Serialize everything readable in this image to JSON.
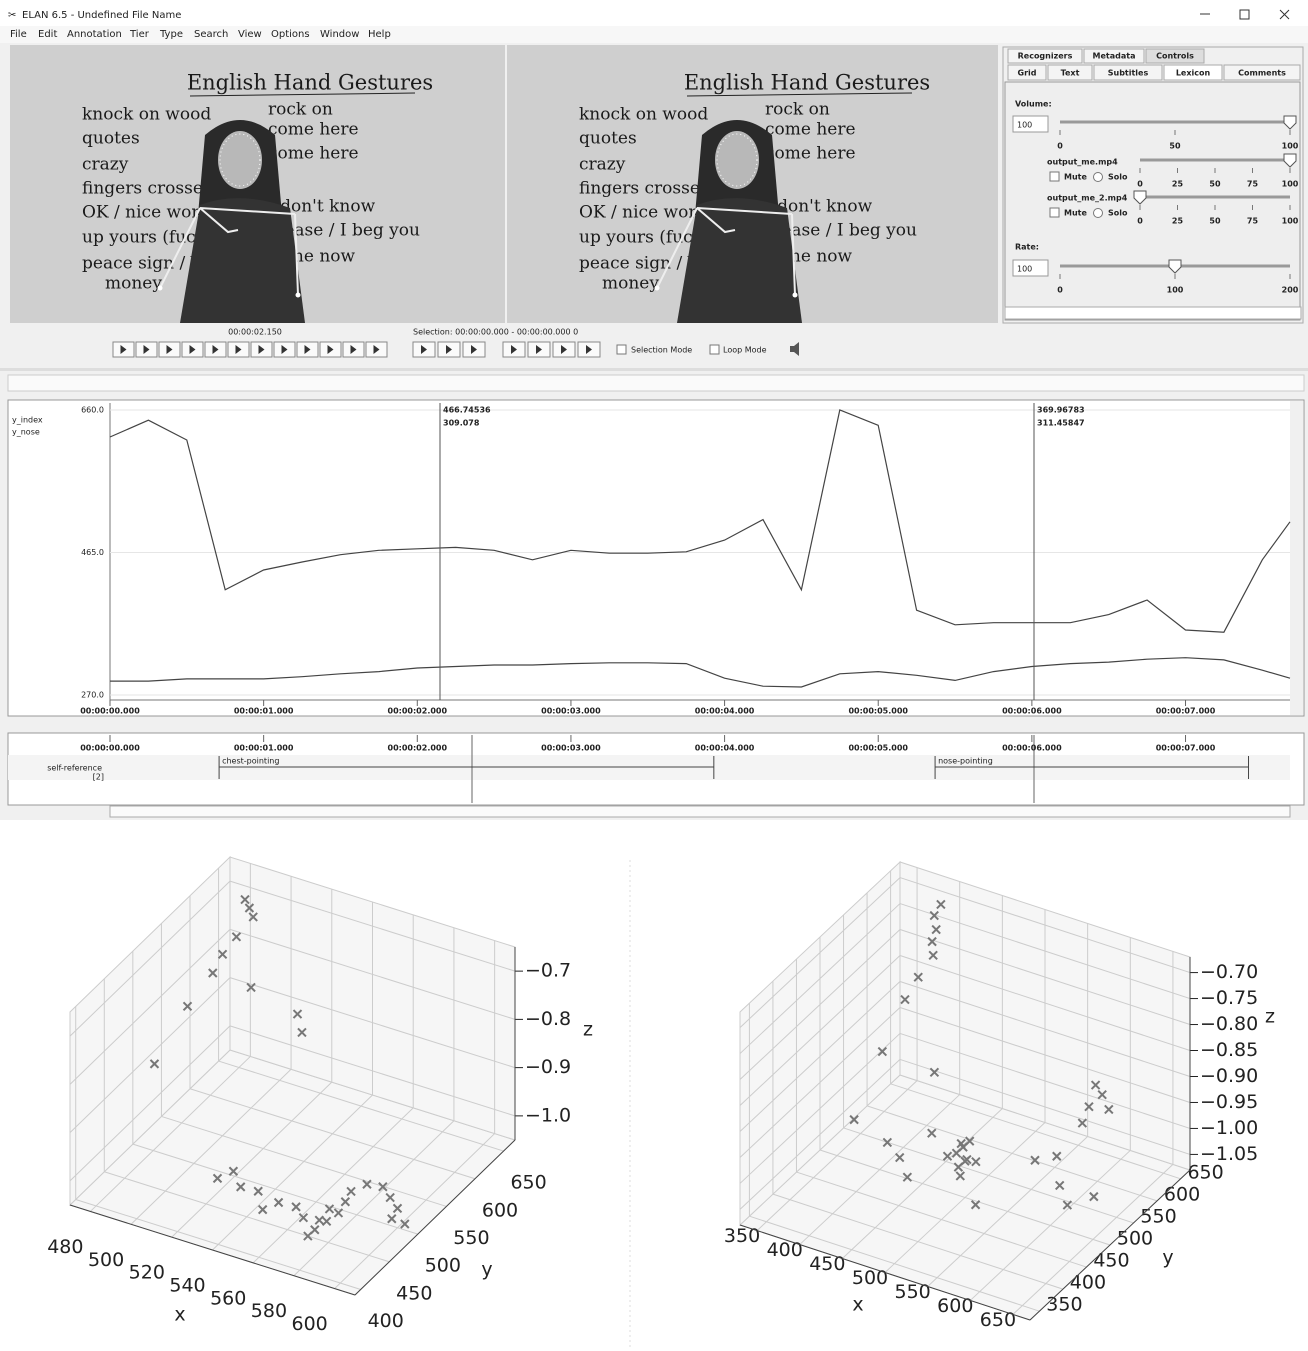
{
  "window": {
    "title": "ELAN 6.5 - Undefined File Name"
  },
  "menu": [
    "File",
    "Edit",
    "Annotation",
    "Tier",
    "Type",
    "Search",
    "View",
    "Options",
    "Window",
    "Help"
  ],
  "video": {
    "title": "English Hand Gestures",
    "left_lines": [
      "knock on wood",
      "quotes",
      "crazy",
      "fingers crossed",
      "OK / nice work",
      "up yours (fuck",
      "peace sign / V",
      "money"
    ],
    "right_lines": [
      "rock on",
      "come here",
      "come here",
      "I don't know",
      "please / I beg you",
      "come now"
    ]
  },
  "side_panel": {
    "tabs_top": [
      "Recognizers",
      "Metadata",
      "Controls"
    ],
    "tabs_bottom": [
      "Grid",
      "Text",
      "Subtitles",
      "Lexicon",
      "Comments"
    ],
    "volume": {
      "label": "Volume:",
      "value": 100,
      "scale": [
        0,
        50,
        100
      ]
    },
    "players": [
      {
        "name": "output_me.mp4",
        "mute": "Mute",
        "solo": "Solo",
        "volume": 100
      },
      {
        "name": "output_me_2.mp4",
        "mute": "Mute",
        "solo": "Solo",
        "volume": 0
      }
    ],
    "player_scale": [
      0,
      25,
      50,
      75,
      100
    ],
    "rate": {
      "label": "Rate:",
      "value": 100,
      "scale": [
        0,
        100,
        200
      ]
    }
  },
  "transport": {
    "time": "00:00:02.150",
    "selection": "Selection: 00:00:00.000 - 00:00:00.000  0",
    "selection_mode": "Selection Mode",
    "loop_mode": "Loop Mode"
  },
  "tier": {
    "name": "self-reference",
    "count": "[2]",
    "annotations": [
      {
        "label": "chest-pointing",
        "start": 0.71,
        "end": 3.93
      },
      {
        "label": "nose-pointing",
        "start": 5.37,
        "end": 7.41
      }
    ]
  },
  "chart_data": [
    {
      "type": "line",
      "x": [
        0,
        0.25,
        0.5,
        0.75,
        1,
        1.25,
        1.5,
        1.75,
        2,
        2.25,
        2.5,
        2.75,
        3,
        3.25,
        3.5,
        3.75,
        4,
        4.25,
        4.5,
        4.75,
        5,
        5.25,
        5.5,
        5.75,
        6,
        6.25,
        6.5,
        6.75,
        7,
        7.25,
        7.5,
        7.68
      ],
      "series": [
        {
          "name": "y_index",
          "color": "#444444",
          "values": [
            623,
            646,
            619,
            414,
            441,
            452,
            462,
            468,
            470,
            472,
            468,
            455,
            468,
            464,
            464,
            466,
            482,
            510,
            414,
            660,
            639,
            386,
            366,
            369,
            369,
            369,
            380,
            400,
            359,
            356,
            455,
            507
          ]
        },
        {
          "name": "y_nose",
          "color": "#444444",
          "values": [
            289,
            289,
            292,
            292,
            292,
            295,
            299,
            302,
            307,
            309,
            311,
            311,
            313,
            314,
            314,
            313,
            293,
            282,
            281,
            299,
            302,
            297,
            290,
            302,
            309,
            313,
            315,
            319,
            321,
            318,
            304,
            293
          ]
        }
      ],
      "xlim": [
        0,
        7.68
      ],
      "ylim": [
        270,
        660
      ],
      "xticks": [
        {
          "value": 0,
          "label": "00:00:00.000"
        },
        {
          "value": 1,
          "label": "00:00:01.000"
        },
        {
          "value": 2,
          "label": "00:00:02.000"
        },
        {
          "value": 3,
          "label": "00:00:03.000"
        },
        {
          "value": 4,
          "label": "00:00:04.000"
        },
        {
          "value": 5,
          "label": "00:00:05.000"
        },
        {
          "value": 6,
          "label": "00:00:06.000"
        },
        {
          "value": 7,
          "label": "00:00:07.000"
        }
      ],
      "yticks": [
        {
          "value": 660,
          "label": "660.0"
        },
        {
          "value": 465,
          "label": "465.0"
        },
        {
          "value": 270,
          "label": "270.0"
        }
      ],
      "grid": true,
      "readouts": [
        [
          466.74536,
          309.078
        ],
        [
          369.96783,
          311.45847
        ]
      ]
    },
    {
      "type": "scatter3d",
      "marker_color": "#777777",
      "xlabel": "x",
      "ylabel": "y",
      "zlabel": "z",
      "x": [
        490,
        493,
        496,
        490,
        486,
        484,
        500,
        520,
        525,
        480,
        475,
        520,
        525,
        530,
        540,
        545,
        550,
        560,
        565,
        570,
        575,
        575,
        578,
        580,
        580,
        585,
        590,
        595,
        600,
        600,
        605,
        572,
        570
      ],
      "y": [
        625,
        622,
        618,
        610,
        600,
        590,
        600,
        610,
        600,
        560,
        520,
        470,
        480,
        475,
        470,
        460,
        470,
        465,
        460,
        470,
        465,
        470,
        475,
        480,
        490,
        500,
        510,
        505,
        500,
        490,
        495,
        455,
        450
      ],
      "z": [
        -0.66,
        -0.67,
        -0.68,
        -0.72,
        -0.75,
        -0.78,
        -0.8,
        -0.84,
        -0.86,
        -0.82,
        -0.9,
        -1.02,
        -1.01,
        -1.03,
        -1.02,
        -1.04,
        -1.03,
        -1.02,
        -1.03,
        -1.04,
        -1.03,
        -1.01,
        -1.02,
        -1,
        -0.99,
        -0.98,
        -0.99,
        -1,
        -1.01,
        -1.02,
        -1.03,
        -1.04,
        -1.05
      ],
      "xlim": [
        470,
        610
      ],
      "ylim": [
        390,
        670
      ],
      "zlim": [
        -1.05,
        -0.65
      ],
      "xticks": [
        480,
        500,
        520,
        540,
        560,
        580,
        600
      ],
      "yticks": [
        400,
        450,
        500,
        550,
        600,
        650
      ],
      "zticks": [
        {
          "value": -0.7,
          "label": "−0.7"
        },
        {
          "value": -0.8,
          "label": "−0.8"
        },
        {
          "value": -0.9,
          "label": "−0.9"
        },
        {
          "value": -1.0,
          "label": "−1.0"
        }
      ]
    },
    {
      "type": "scatter3d",
      "marker_color": "#777777",
      "xlabel": "x",
      "ylabel": "y",
      "zlabel": "z",
      "x": [
        400,
        395,
        400,
        398,
        402,
        390,
        380,
        370,
        420,
        620,
        625,
        615,
        630,
        610,
        490,
        495,
        500,
        505,
        500,
        495,
        485,
        510,
        500,
        490,
        420,
        440,
        450,
        560,
        580,
        600,
        620,
        640,
        540,
        460,
        370
      ],
      "y": [
        630,
        625,
        620,
        615,
        610,
        600,
        590,
        560,
        580,
        560,
        565,
        555,
        570,
        550,
        500,
        505,
        500,
        495,
        510,
        495,
        490,
        505,
        490,
        510,
        480,
        470,
        520,
        540,
        550,
        520,
        500,
        520,
        450,
        450,
        500
      ],
      "z": [
        -0.68,
        -0.7,
        -0.72,
        -0.74,
        -0.76,
        -0.8,
        -0.84,
        -0.92,
        -0.95,
        -0.85,
        -0.87,
        -0.89,
        -0.9,
        -0.92,
        -1,
        -0.99,
        -1.01,
        -1,
        -0.98,
        -1.02,
        -1,
        -1.01,
        -1.03,
        -0.99,
        -1,
        -1.01,
        -1,
        -1.01,
        -1,
        -1.02,
        -1.03,
        -1.02,
        -1.03,
        -1.02,
        -1
      ],
      "xlim": [
        330,
        670
      ],
      "ylim": [
        330,
        670
      ],
      "zlim": [
        -1.08,
        -0.67
      ],
      "xticks": [
        350,
        400,
        450,
        500,
        550,
        600,
        650
      ],
      "yticks": [
        350,
        400,
        450,
        500,
        550,
        600,
        650
      ],
      "zticks": [
        {
          "value": -0.7,
          "label": "−0.70"
        },
        {
          "value": -0.75,
          "label": "−0.75"
        },
        {
          "value": -0.8,
          "label": "−0.80"
        },
        {
          "value": -0.85,
          "label": "−0.85"
        },
        {
          "value": -0.9,
          "label": "−0.90"
        },
        {
          "value": -0.95,
          "label": "−0.95"
        },
        {
          "value": -1.0,
          "label": "−1.00"
        },
        {
          "value": -1.05,
          "label": "−1.05"
        }
      ]
    }
  ]
}
